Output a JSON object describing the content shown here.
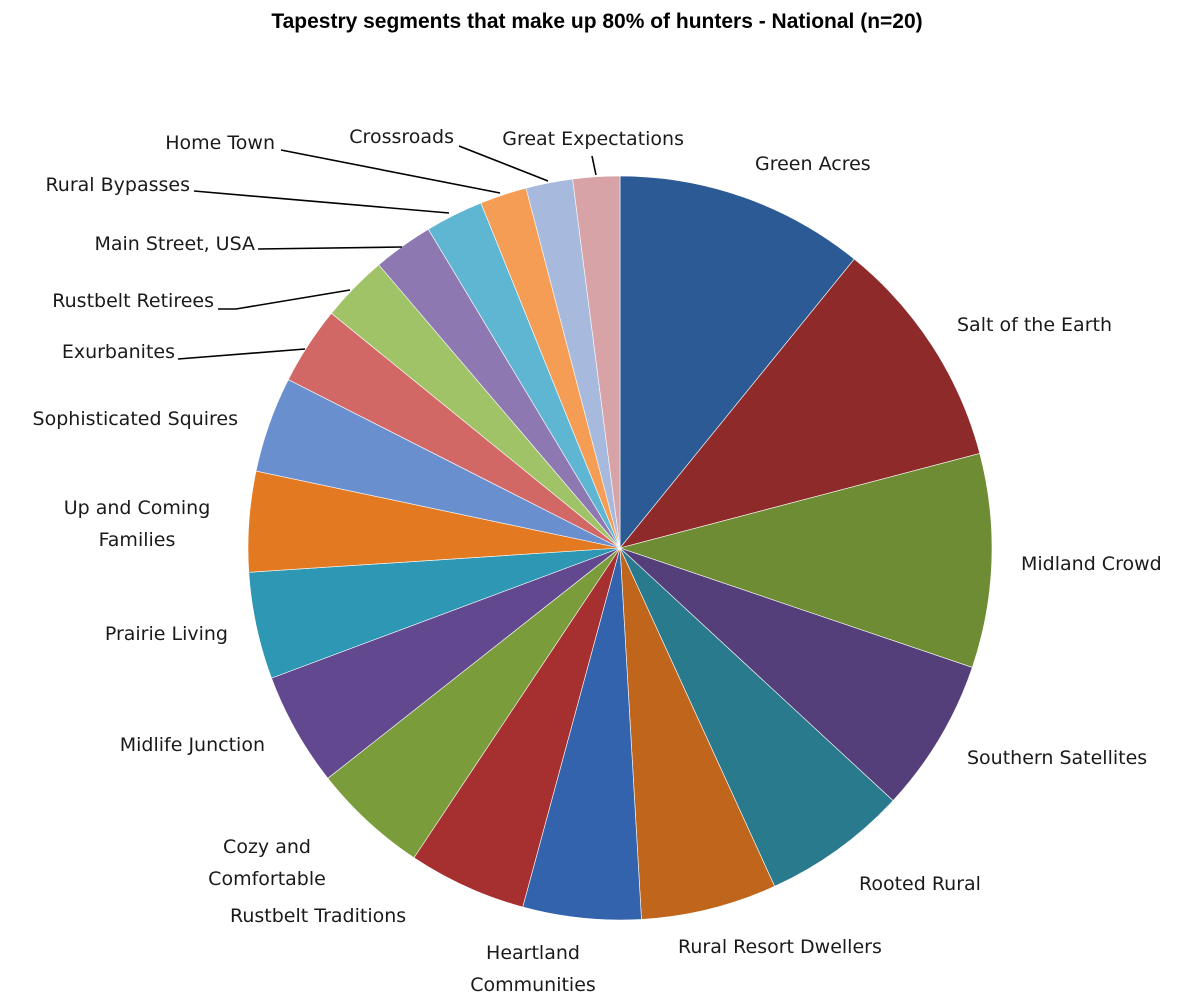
{
  "chart_data": {
    "type": "pie",
    "title": "Tapestry segments that make up 80% of hunters - National (n=20)",
    "start": "12 o'clock",
    "direction": "clockwise",
    "slices": [
      {
        "label": "Green Acres",
        "value": 11.2,
        "color": "#2b5a95"
      },
      {
        "label": "Salt of the Earth",
        "value": 10.4,
        "color": "#8e2a2a"
      },
      {
        "label": "Midland Crowd",
        "value": 9.6,
        "color": "#6e8c33"
      },
      {
        "label": "Southern Satellites",
        "value": 6.9,
        "color": "#553f7a"
      },
      {
        "label": "Rooted Rural",
        "value": 6.5,
        "color": "#2a7a8e"
      },
      {
        "label": "Rural Resort  Dwellers",
        "value": 6.1,
        "color": "#c0661c"
      },
      {
        "label": "Heartland Communities",
        "value": 5.3,
        "color": "#3463ad"
      },
      {
        "label": "Rustbelt Traditions",
        "value": 5.3,
        "color": "#a62f2f"
      },
      {
        "label": "Cozy and Comfortable",
        "value": 5.2,
        "color": "#7a9c3a"
      },
      {
        "label": "Midlife Junction",
        "value": 5.1,
        "color": "#62488f"
      },
      {
        "label": "Prairie Living",
        "value": 4.8,
        "color": "#2e97b3"
      },
      {
        "label": "Up and Coming Families",
        "value": 4.5,
        "color": "#e37a21"
      },
      {
        "label": "Sophisticated Squires",
        "value": 4.3,
        "color": "#6a8fce"
      },
      {
        "label": "Exurbanites",
        "value": 3.5,
        "color": "#d26866"
      },
      {
        "label": "Rustbelt Retirees",
        "value": 3.0,
        "color": "#a1c367"
      },
      {
        "label": "Main Street,  USA",
        "value": 2.7,
        "color": "#8e78b1"
      },
      {
        "label": "Rural Bypasses",
        "value": 2.6,
        "color": "#5fb6d2"
      },
      {
        "label": "Home Town",
        "value": 2.1,
        "color": "#f59c55"
      },
      {
        "label": "Crossroads",
        "value": 2.1,
        "color": "#a7b9dc"
      },
      {
        "label": "Great Expectations",
        "value": 2.1,
        "color": "#d7a3a6"
      }
    ]
  }
}
